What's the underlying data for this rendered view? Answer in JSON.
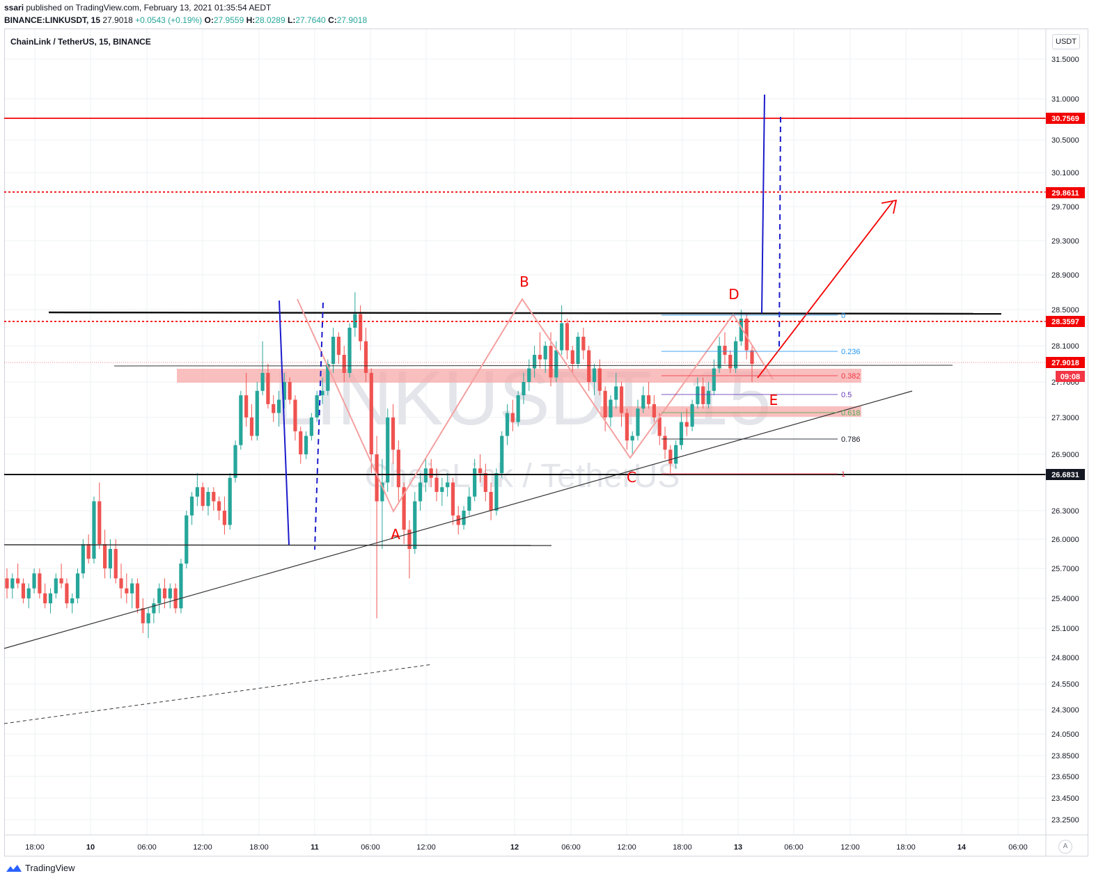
{
  "header": {
    "published": "ssari published on TradingView.com, February 13, 2021 01:35:54 AEDT",
    "author": "ssari",
    "published_rest": " published on TradingView.com, February 13, 2021 01:35:54 AEDT",
    "symbol": "BINANCE:LINKUSDT, 15",
    "last": "27.9018",
    "change": "+0.0543 (+0.19%)",
    "open_label": "O:",
    "open": "27.9559",
    "high_label": "H:",
    "high": "28.0289",
    "low_label": "L:",
    "low": "27.7640",
    "close_label": "C:",
    "close": "27.9018"
  },
  "pane_title": "ChainLink / TetherUS, 15, BINANCE",
  "currency_button": "USDT",
  "auto_button": "A",
  "footer_brand": "TradingView",
  "watermark": {
    "symbol": "LINKUSDT, 15",
    "name": "ChainLink / TetherUS"
  },
  "colors": {
    "up": "#26a69a",
    "down": "#ef5350",
    "red_line": "#f20000",
    "blue": "#1a1acc",
    "zone": "#f7a8a8",
    "pattern": "#f4a0a0",
    "grid": "#eef0f3"
  },
  "chart_data": {
    "type": "candlestick",
    "symbol": "LINKUSDT",
    "interval": "15",
    "exchange": "BINANCE",
    "ylim": [
      23.1,
      31.7
    ],
    "y_ticks": [
      "31.5000",
      "31.0000",
      "30.5000",
      "30.1000",
      "29.7000",
      "29.3000",
      "28.9000",
      "28.5000",
      "28.1000",
      "27.7000",
      "27.3000",
      "26.9000",
      "26.3000",
      "26.0000",
      "25.7000",
      "25.4000",
      "25.1000",
      "24.8000",
      "24.5500",
      "24.3000",
      "24.0500",
      "23.8500",
      "23.6500",
      "23.4500",
      "23.2500"
    ],
    "x_ticks": [
      "18:00",
      "10",
      "06:00",
      "12:00",
      "18:00",
      "11",
      "06:00",
      "12:00",
      "12",
      "06:00",
      "12:00",
      "18:00",
      "13",
      "06:00",
      "12:00",
      "18:00",
      "14",
      "06:00"
    ],
    "price_labels": [
      {
        "value": "30.7569",
        "kind": "red"
      },
      {
        "value": "29.8611",
        "kind": "red"
      },
      {
        "value": "28.3597",
        "kind": "red"
      },
      {
        "value": "27.9018",
        "kind": "red"
      },
      {
        "value": "09:08",
        "kind": "countdown"
      },
      {
        "value": "26.6831",
        "kind": "black"
      }
    ],
    "horizontal_levels": [
      {
        "price": 30.7569,
        "style": "solid",
        "color": "red"
      },
      {
        "price": 29.8611,
        "style": "dotted",
        "color": "red"
      },
      {
        "price": 28.3597,
        "style": "dotted",
        "color": "red"
      },
      {
        "price": 28.45,
        "style": "solid",
        "color": "black"
      },
      {
        "price": 26.6831,
        "style": "solid",
        "color": "black"
      },
      {
        "price": 25.95,
        "style": "solid",
        "color": "black"
      }
    ],
    "fibonacci": [
      {
        "level": "0",
        "price": 28.43
      },
      {
        "level": "0.236",
        "price": 28.0
      },
      {
        "level": "0.382",
        "price": 27.75
      },
      {
        "level": "0.5",
        "price": 27.53
      },
      {
        "level": "0.618",
        "price": 27.3
      },
      {
        "level": "0.786",
        "price": 27.0
      },
      {
        "level": "1",
        "price": 26.68
      }
    ],
    "pattern_points": [
      "A",
      "B",
      "C",
      "D",
      "E"
    ],
    "candles": [
      [
        25.6,
        25.7,
        25.4,
        25.5
      ],
      [
        25.5,
        25.65,
        25.4,
        25.6
      ],
      [
        25.6,
        25.75,
        25.5,
        25.55
      ],
      [
        25.55,
        25.6,
        25.35,
        25.4
      ],
      [
        25.4,
        25.55,
        25.3,
        25.5
      ],
      [
        25.5,
        25.7,
        25.45,
        25.65
      ],
      [
        25.65,
        25.7,
        25.4,
        25.45
      ],
      [
        25.45,
        25.55,
        25.3,
        25.35
      ],
      [
        25.35,
        25.5,
        25.25,
        25.45
      ],
      [
        25.45,
        25.65,
        25.4,
        25.6
      ],
      [
        25.6,
        25.75,
        25.5,
        25.55
      ],
      [
        25.55,
        25.6,
        25.3,
        25.35
      ],
      [
        25.35,
        25.45,
        25.25,
        25.4
      ],
      [
        25.4,
        25.7,
        25.35,
        25.65
      ],
      [
        25.65,
        26.0,
        25.6,
        25.95
      ],
      [
        25.95,
        26.05,
        25.75,
        25.8
      ],
      [
        25.8,
        26.45,
        25.75,
        26.4
      ],
      [
        26.4,
        26.6,
        25.9,
        25.95
      ],
      [
        25.95,
        26.1,
        25.6,
        25.7
      ],
      [
        25.7,
        26.0,
        25.6,
        25.9
      ],
      [
        25.9,
        26.0,
        25.55,
        25.6
      ],
      [
        25.6,
        25.75,
        25.4,
        25.5
      ],
      [
        25.5,
        25.65,
        25.35,
        25.45
      ],
      [
        25.45,
        25.6,
        25.3,
        25.55
      ],
      [
        25.55,
        25.6,
        25.25,
        25.3
      ],
      [
        25.3,
        25.4,
        25.05,
        25.15
      ],
      [
        25.15,
        25.3,
        25.0,
        25.25
      ],
      [
        25.25,
        25.4,
        25.15,
        25.35
      ],
      [
        25.35,
        25.55,
        25.25,
        25.5
      ],
      [
        25.5,
        25.6,
        25.3,
        25.4
      ],
      [
        25.4,
        25.55,
        25.3,
        25.5
      ],
      [
        25.5,
        25.55,
        25.25,
        25.3
      ],
      [
        25.3,
        25.8,
        25.25,
        25.75
      ],
      [
        25.75,
        26.3,
        25.7,
        26.25
      ],
      [
        26.25,
        26.5,
        26.15,
        26.45
      ],
      [
        26.45,
        26.7,
        26.35,
        26.55
      ],
      [
        26.55,
        26.6,
        26.3,
        26.35
      ],
      [
        26.35,
        26.55,
        26.25,
        26.5
      ],
      [
        26.5,
        26.55,
        26.3,
        26.4
      ],
      [
        26.4,
        26.45,
        26.2,
        26.3
      ],
      [
        26.3,
        26.45,
        26.05,
        26.15
      ],
      [
        26.15,
        26.7,
        26.1,
        26.65
      ],
      [
        26.65,
        27.05,
        26.6,
        27.0
      ],
      [
        27.0,
        27.6,
        26.95,
        27.55
      ],
      [
        27.55,
        27.8,
        27.2,
        27.3
      ],
      [
        27.3,
        27.45,
        27.05,
        27.1
      ],
      [
        27.1,
        27.7,
        27.05,
        27.6
      ],
      [
        27.6,
        28.15,
        27.55,
        27.8
      ],
      [
        27.8,
        27.9,
        27.4,
        27.45
      ],
      [
        27.45,
        27.55,
        27.25,
        27.35
      ],
      [
        27.35,
        27.6,
        27.2,
        27.5
      ],
      [
        27.5,
        27.8,
        27.4,
        27.7
      ],
      [
        27.7,
        27.75,
        27.45,
        27.5
      ],
      [
        27.5,
        27.55,
        27.05,
        27.15
      ],
      [
        27.15,
        27.2,
        26.8,
        26.9
      ],
      [
        26.9,
        27.15,
        26.85,
        27.1
      ],
      [
        27.1,
        27.35,
        27.05,
        27.3
      ],
      [
        27.3,
        27.6,
        27.25,
        27.55
      ],
      [
        27.55,
        27.75,
        27.45,
        27.6
      ],
      [
        27.6,
        27.95,
        27.55,
        27.9
      ],
      [
        27.9,
        28.3,
        27.8,
        28.2
      ],
      [
        28.2,
        28.25,
        27.9,
        28.0
      ],
      [
        28.0,
        28.1,
        27.7,
        27.8
      ],
      [
        27.8,
        28.35,
        27.75,
        28.3
      ],
      [
        28.3,
        28.7,
        28.2,
        28.45
      ],
      [
        28.45,
        28.55,
        28.05,
        28.15
      ],
      [
        28.15,
        28.3,
        27.7,
        27.8
      ],
      [
        27.8,
        27.85,
        26.7,
        26.9
      ],
      [
        26.9,
        27.1,
        25.2,
        26.4
      ],
      [
        26.4,
        26.85,
        25.9,
        26.6
      ],
      [
        26.6,
        27.4,
        26.5,
        27.3
      ],
      [
        27.3,
        27.45,
        26.8,
        26.95
      ],
      [
        26.95,
        27.05,
        26.4,
        26.55
      ],
      [
        26.55,
        26.6,
        25.95,
        26.1
      ],
      [
        26.1,
        26.2,
        25.6,
        25.9
      ],
      [
        25.9,
        26.5,
        25.85,
        26.4
      ],
      [
        26.4,
        26.7,
        26.3,
        26.6
      ],
      [
        26.6,
        26.85,
        26.5,
        26.75
      ],
      [
        26.75,
        26.85,
        26.55,
        26.65
      ],
      [
        26.65,
        26.75,
        26.4,
        26.5
      ],
      [
        26.5,
        26.65,
        26.35,
        26.55
      ],
      [
        26.55,
        26.7,
        26.45,
        26.6
      ],
      [
        26.6,
        26.65,
        26.15,
        26.25
      ],
      [
        26.25,
        26.35,
        26.05,
        26.15
      ],
      [
        26.15,
        26.35,
        26.1,
        26.3
      ],
      [
        26.3,
        26.55,
        26.25,
        26.45
      ],
      [
        26.45,
        26.85,
        26.4,
        26.75
      ],
      [
        26.75,
        26.9,
        26.6,
        26.7
      ],
      [
        26.7,
        26.8,
        26.4,
        26.5
      ],
      [
        26.5,
        26.6,
        26.2,
        26.3
      ],
      [
        26.3,
        26.75,
        26.25,
        26.7
      ],
      [
        26.7,
        27.15,
        26.65,
        27.1
      ],
      [
        27.1,
        27.45,
        27.0,
        27.35
      ],
      [
        27.35,
        27.5,
        27.15,
        27.25
      ],
      [
        27.25,
        27.6,
        27.2,
        27.55
      ],
      [
        27.55,
        27.8,
        27.45,
        27.7
      ],
      [
        27.7,
        27.95,
        27.6,
        27.85
      ],
      [
        27.85,
        28.1,
        27.75,
        28.0
      ],
      [
        28.0,
        28.25,
        27.85,
        27.95
      ],
      [
        27.95,
        28.15,
        27.8,
        28.1
      ],
      [
        28.1,
        28.25,
        27.65,
        27.75
      ],
      [
        27.75,
        28.15,
        27.7,
        28.05
      ],
      [
        28.05,
        28.55,
        28.0,
        28.35
      ],
      [
        28.35,
        28.4,
        27.95,
        28.05
      ],
      [
        28.05,
        28.1,
        27.8,
        27.9
      ],
      [
        27.9,
        28.25,
        27.85,
        28.2
      ],
      [
        28.2,
        28.3,
        27.95,
        28.05
      ],
      [
        28.05,
        28.1,
        27.6,
        27.7
      ],
      [
        27.7,
        27.9,
        27.55,
        27.85
      ],
      [
        27.85,
        27.95,
        27.55,
        27.6
      ],
      [
        27.6,
        27.65,
        27.15,
        27.3
      ],
      [
        27.3,
        27.55,
        27.2,
        27.5
      ],
      [
        27.5,
        27.8,
        27.4,
        27.65
      ],
      [
        27.65,
        27.7,
        27.2,
        27.35
      ],
      [
        27.35,
        27.4,
        26.95,
        27.05
      ],
      [
        27.05,
        27.15,
        26.9,
        27.1
      ],
      [
        27.1,
        27.5,
        27.05,
        27.4
      ],
      [
        27.4,
        27.65,
        27.35,
        27.55
      ],
      [
        27.55,
        27.7,
        27.4,
        27.45
      ],
      [
        27.45,
        27.55,
        27.25,
        27.3
      ],
      [
        27.3,
        27.35,
        27.0,
        27.1
      ],
      [
        27.1,
        27.2,
        26.85,
        26.95
      ],
      [
        26.95,
        27.0,
        26.7,
        26.8
      ],
      [
        26.8,
        27.05,
        26.75,
        27.0
      ],
      [
        27.0,
        27.35,
        26.95,
        27.25
      ],
      [
        27.25,
        27.4,
        27.1,
        27.2
      ],
      [
        27.2,
        27.5,
        27.15,
        27.45
      ],
      [
        27.45,
        27.75,
        27.4,
        27.65
      ],
      [
        27.65,
        27.75,
        27.4,
        27.45
      ],
      [
        27.45,
        27.7,
        27.4,
        27.6
      ],
      [
        27.6,
        27.95,
        27.55,
        27.85
      ],
      [
        27.85,
        28.2,
        27.8,
        28.1
      ],
      [
        28.1,
        28.25,
        27.9,
        28.0
      ],
      [
        28.0,
        28.05,
        27.8,
        27.85
      ],
      [
        27.85,
        28.2,
        27.8,
        28.15
      ],
      [
        28.15,
        28.5,
        28.1,
        28.4
      ],
      [
        28.4,
        28.45,
        27.95,
        28.05
      ],
      [
        28.05,
        28.1,
        27.7,
        27.9
      ]
    ]
  }
}
